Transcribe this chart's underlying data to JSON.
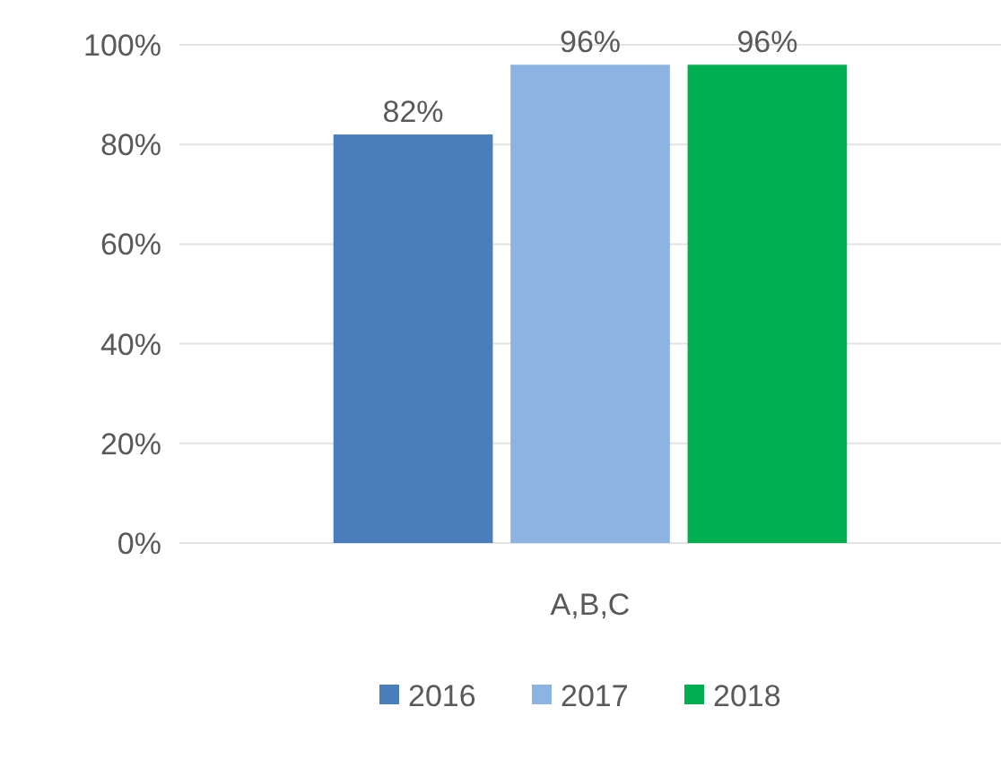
{
  "chart_data": {
    "type": "bar",
    "categories": [
      "A,B,C"
    ],
    "series": [
      {
        "name": "2016",
        "color": "#4a7ebb",
        "values": [
          82
        ],
        "value_labels": [
          "82%"
        ]
      },
      {
        "name": "2017",
        "color": "#8db3e2",
        "values": [
          96
        ],
        "value_labels": [
          "96%"
        ]
      },
      {
        "name": "2018",
        "color": "#00b050",
        "values": [
          96
        ],
        "value_labels": [
          "96%"
        ]
      }
    ],
    "ylim": [
      0,
      100
    ],
    "yticks": [
      {
        "value": 0,
        "label": "0%"
      },
      {
        "value": 20,
        "label": "20%"
      },
      {
        "value": 40,
        "label": "40%"
      },
      {
        "value": 60,
        "label": "60%"
      },
      {
        "value": 80,
        "label": "80%"
      },
      {
        "value": 100,
        "label": "100%"
      }
    ],
    "grid": "y",
    "legend": "bottom"
  }
}
